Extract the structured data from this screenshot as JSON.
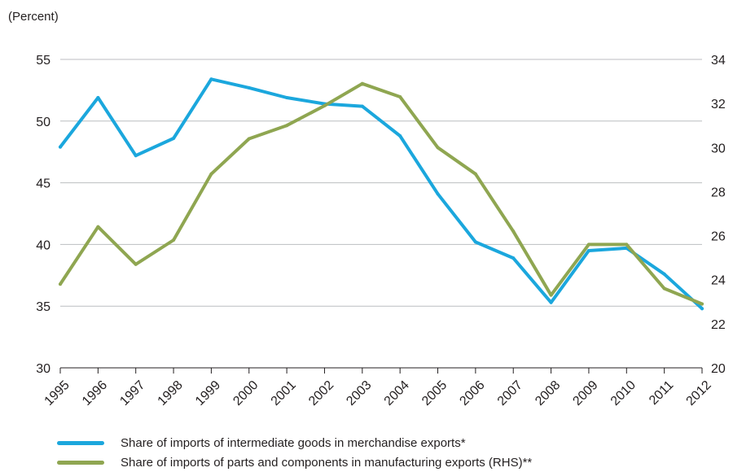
{
  "chart_data": {
    "type": "line",
    "unit_label": "(Percent)",
    "x": [
      "1995",
      "1996",
      "1997",
      "1998",
      "1999",
      "2000",
      "2001",
      "2002",
      "2003",
      "2004",
      "2005",
      "2006",
      "2007",
      "2008",
      "2009",
      "2010",
      "2011",
      "2012"
    ],
    "y_left": {
      "ylim": [
        30,
        55
      ],
      "ticks": [
        30,
        35,
        40,
        45,
        50,
        55
      ]
    },
    "y_right": {
      "ylim": [
        20,
        34
      ],
      "ticks": [
        20,
        22,
        24,
        26,
        28,
        30,
        32,
        34
      ]
    },
    "grid": true,
    "legend_position": "bottom",
    "series": [
      {
        "name": "Share of imports of intermediate goods in merchandise exports*",
        "axis": "left",
        "color": "#1ba7dd",
        "values": [
          47.9,
          51.9,
          47.2,
          48.6,
          53.4,
          52.7,
          51.9,
          51.4,
          51.2,
          48.8,
          44.1,
          40.2,
          38.9,
          35.3,
          39.5,
          39.7,
          37.6,
          34.8
        ]
      },
      {
        "name": "Share of imports of parts and components in manufacturing exports (RHS)**",
        "axis": "right",
        "color": "#8fa651",
        "values": [
          23.8,
          26.4,
          24.7,
          25.8,
          28.8,
          30.4,
          31.0,
          31.9,
          32.9,
          32.3,
          30.0,
          28.8,
          26.2,
          23.3,
          25.6,
          25.6,
          23.6,
          22.9
        ]
      }
    ]
  }
}
